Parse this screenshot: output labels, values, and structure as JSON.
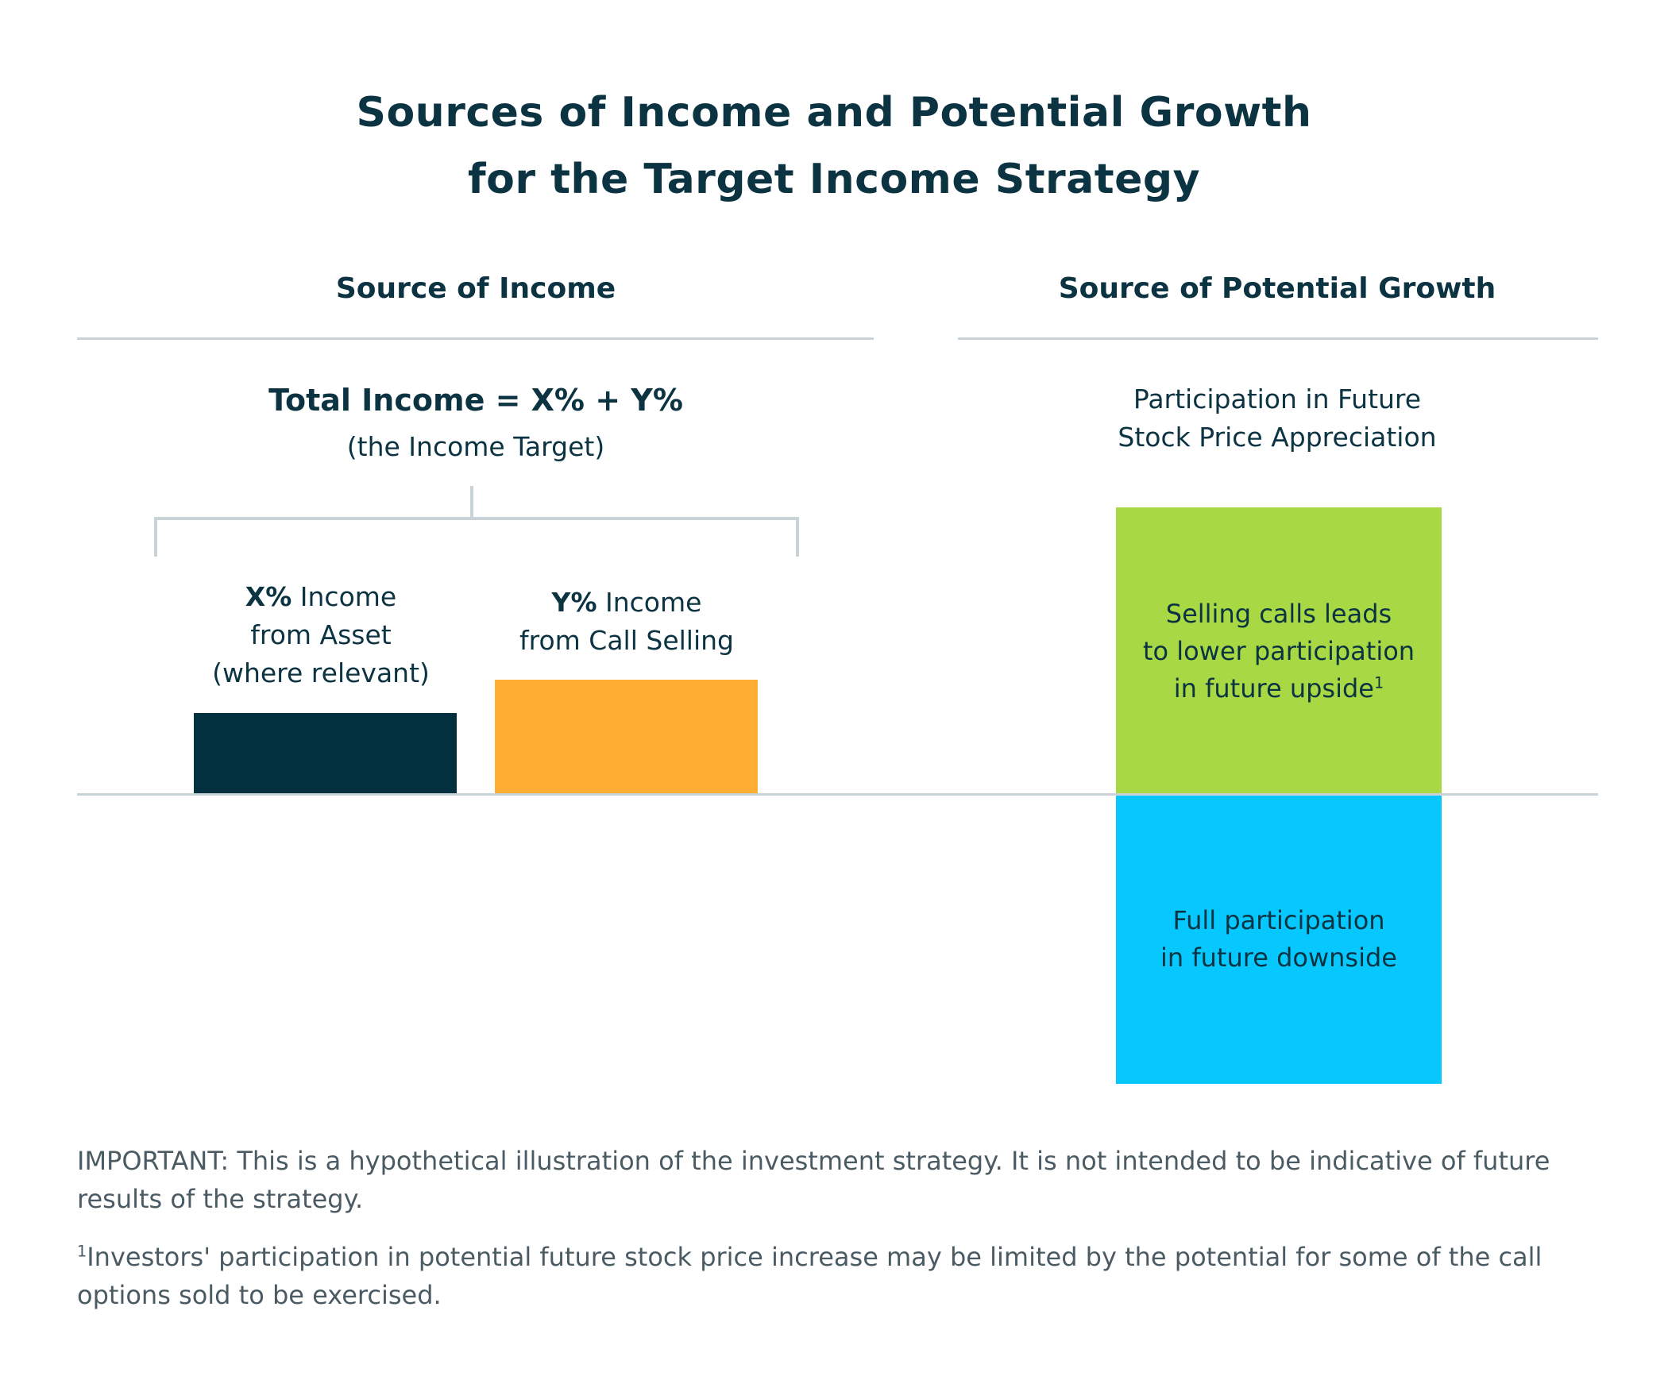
{
  "title": {
    "line1": "Sources of Income and Potential Growth",
    "line2": "for the Target Income Strategy"
  },
  "income": {
    "header": "Source of Income",
    "total_label": "Total Income = X% + Y%",
    "total_sublabel": "(the Income Target)",
    "asset": {
      "bold": "X%",
      "line1_rest": " Income",
      "line2": "from Asset",
      "line3": "(where relevant)",
      "color": "#03303f"
    },
    "calls": {
      "bold": "Y%",
      "line1_rest": " Income",
      "line2": "from Call Selling",
      "color": "#ffad33"
    }
  },
  "growth": {
    "header": "Source of Potential Growth",
    "subtitle_line1": "Participation in Future",
    "subtitle_line2": "Stock Price Appreciation",
    "upside": {
      "line1": "Selling calls leads",
      "line2": "to lower participation",
      "line3": "in future upside",
      "footnote_mark": "1",
      "color": "#a8d945"
    },
    "downside": {
      "line1": "Full participation",
      "line2": "in future downside",
      "color": "#06c8fe"
    }
  },
  "notes": {
    "important": "IMPORTANT: This is a hypothetical illustration of the investment strategy. It is not intended to be indicative of future results of the strategy.",
    "footnote_mark": "1",
    "footnote": "Investors' participation in potential future stock price increase may be limited by the potential for some of the call options sold to be exercised."
  }
}
